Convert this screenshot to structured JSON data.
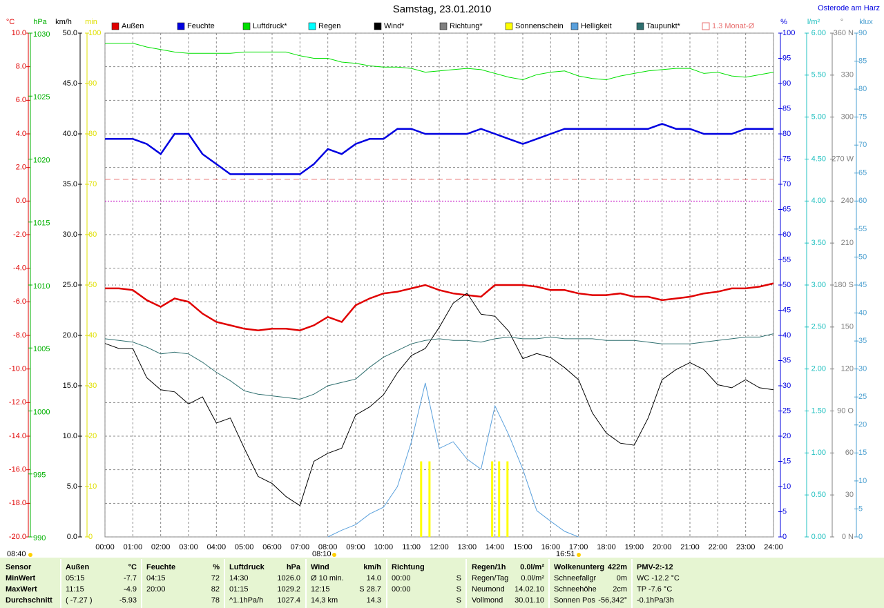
{
  "chart_data": {
    "type": "line",
    "title": "Samstag, 23.01.2010",
    "subtitle": "Osterode am Harz",
    "x": [
      0,
      0.5,
      1,
      1.5,
      2,
      2.5,
      3,
      3.5,
      4,
      4.5,
      5,
      5.5,
      6,
      6.5,
      7,
      7.5,
      8,
      8.5,
      9,
      9.5,
      10,
      10.5,
      11,
      11.5,
      12,
      12.5,
      13,
      13.5,
      14,
      14.5,
      15,
      15.5,
      16,
      16.5,
      17,
      17.5,
      18,
      18.5,
      19,
      19.5,
      20,
      20.5,
      21,
      21.5,
      22,
      22.5,
      23,
      23.5,
      24
    ],
    "xlim": [
      0,
      24
    ],
    "xticks": [
      {
        "value": 0,
        "label": "00:00"
      },
      {
        "value": 1,
        "label": "01:00"
      },
      {
        "value": 2,
        "label": "02:00"
      },
      {
        "value": 3,
        "label": "03:00"
      },
      {
        "value": 4,
        "label": "04:00"
      },
      {
        "value": 5,
        "label": "05:00"
      },
      {
        "value": 6,
        "label": "06:00"
      },
      {
        "value": 7,
        "label": "07:00"
      },
      {
        "value": 8,
        "label": "08:00"
      },
      {
        "value": 9,
        "label": "09:00"
      },
      {
        "value": 10,
        "label": "10:00"
      },
      {
        "value": 11,
        "label": "11:00"
      },
      {
        "value": 12,
        "label": "12:00"
      },
      {
        "value": 13,
        "label": "13:00"
      },
      {
        "value": 14,
        "label": "14:00"
      },
      {
        "value": 15,
        "label": "15:00"
      },
      {
        "value": 16,
        "label": "16:00"
      },
      {
        "value": 17,
        "label": "17:00"
      },
      {
        "value": 18,
        "label": "18:00"
      },
      {
        "value": 19,
        "label": "19:00"
      },
      {
        "value": 20,
        "label": "20:00"
      },
      {
        "value": 21,
        "label": "21:00"
      },
      {
        "value": 22,
        "label": "22:00"
      },
      {
        "value": 23,
        "label": "23:00"
      },
      {
        "value": 24,
        "label": "24:00"
      }
    ],
    "grid": true,
    "axes": [
      {
        "unit": "°C",
        "color": "#e00000",
        "lim": [
          -20,
          10
        ],
        "ticks": [
          {
            "value": -20,
            "label": "-20.0"
          },
          {
            "value": -18,
            "label": "-18.0"
          },
          {
            "value": -16,
            "label": "-16.0"
          },
          {
            "value": -14,
            "label": "-14.0"
          },
          {
            "value": -12,
            "label": "-12.0"
          },
          {
            "value": -10,
            "label": "-10.0"
          },
          {
            "value": -8,
            "label": "-8.0"
          },
          {
            "value": -6,
            "label": "-6.0"
          },
          {
            "value": -4,
            "label": "-4.0"
          },
          {
            "value": -2,
            "label": "-2.0"
          },
          {
            "value": 0,
            "label": "0.0"
          },
          {
            "value": 2,
            "label": "2.0"
          },
          {
            "value": 4,
            "label": "4.0"
          },
          {
            "value": 6,
            "label": "6.0"
          },
          {
            "value": 8,
            "label": "8.0"
          },
          {
            "value": 10,
            "label": "10.0"
          }
        ]
      },
      {
        "unit": "hPa",
        "color": "#00b000",
        "lim": [
          990,
          1030
        ],
        "ticks": [
          990,
          995,
          1000,
          1005,
          1010,
          1015,
          1020,
          1025,
          1030
        ]
      },
      {
        "unit": "km/h",
        "color": "#000000",
        "lim": [
          0,
          50
        ],
        "ticks": [
          {
            "value": 0,
            "label": "0.0"
          },
          {
            "value": 5,
            "label": "5.0"
          },
          {
            "value": 10,
            "label": "10.0"
          },
          {
            "value": 15,
            "label": "15.0"
          },
          {
            "value": 20,
            "label": "20.0"
          },
          {
            "value": 25,
            "label": "25.0"
          },
          {
            "value": 30,
            "label": "30.0"
          },
          {
            "value": 35,
            "label": "35.0"
          },
          {
            "value": 40,
            "label": "40.0"
          },
          {
            "value": 45,
            "label": "45.0"
          },
          {
            "value": 50,
            "label": "50.0"
          }
        ]
      },
      {
        "unit": "min",
        "color": "#e0e000",
        "lim": [
          0,
          100
        ],
        "ticks": [
          0,
          10,
          20,
          30,
          40,
          50,
          60,
          70,
          80,
          90,
          100
        ]
      },
      {
        "unit": "%",
        "color": "#0000e0",
        "lim": [
          0,
          100
        ],
        "ticks": [
          0,
          5,
          10,
          15,
          20,
          25,
          30,
          35,
          40,
          45,
          50,
          55,
          60,
          65,
          70,
          75,
          80,
          85,
          90,
          95,
          100
        ]
      },
      {
        "unit": "l/m²",
        "color": "#20c0c0",
        "lim": [
          0,
          6
        ],
        "ticks": [
          {
            "value": 0,
            "label": "0.00"
          },
          {
            "value": 0.5,
            "label": "0.50"
          },
          {
            "value": 1,
            "label": "1.00"
          },
          {
            "value": 1.5,
            "label": "1.50"
          },
          {
            "value": 2,
            "label": "2.00"
          },
          {
            "value": 2.5,
            "label": "2.50"
          },
          {
            "value": 3,
            "label": "3.00"
          },
          {
            "value": 3.5,
            "label": "3.50"
          },
          {
            "value": 4,
            "label": "4.00"
          },
          {
            "value": 4.5,
            "label": "4.50"
          },
          {
            "value": 5,
            "label": "5.00"
          },
          {
            "value": 5.5,
            "label": "5.50"
          },
          {
            "value": 6,
            "label": "6.00"
          }
        ]
      },
      {
        "unit": "°",
        "color": "#808080",
        "lim": [
          0,
          360
        ],
        "ticks": [
          {
            "value": 0,
            "label": "0 N"
          },
          30,
          60,
          {
            "value": 90,
            "label": "90 O"
          },
          120,
          150,
          {
            "value": 180,
            "label": "180 S"
          },
          210,
          240,
          {
            "value": 270,
            "label": "270 W"
          },
          300,
          330,
          {
            "value": 360,
            "label": "360 N"
          }
        ]
      },
      {
        "unit": "klux",
        "color": "#4a9fd0",
        "lim": [
          0,
          90
        ],
        "ticks": [
          0,
          5,
          10,
          15,
          20,
          25,
          30,
          35,
          40,
          45,
          50,
          55,
          60,
          65,
          70,
          75,
          80,
          85,
          90
        ]
      }
    ],
    "series": [
      {
        "name": "Außen",
        "color": "#e00000",
        "axis": 0,
        "values": [
          -5.2,
          -5.2,
          -5.3,
          -5.9,
          -6.3,
          -5.8,
          -6.0,
          -6.7,
          -7.2,
          -7.4,
          -7.6,
          -7.7,
          -7.6,
          -7.6,
          -7.7,
          -7.4,
          -6.9,
          -7.2,
          -6.2,
          -5.8,
          -5.5,
          -5.4,
          -5.2,
          -5.0,
          -5.3,
          -5.5,
          -5.6,
          -5.7,
          -5.0,
          -5.0,
          -5.0,
          -5.1,
          -5.3,
          -5.3,
          -5.5,
          -5.6,
          -5.6,
          -5.5,
          -5.7,
          -5.7,
          -5.9,
          -5.8,
          -5.7,
          -5.5,
          -5.4,
          -5.2,
          -5.2,
          -5.1,
          -4.9
        ]
      },
      {
        "name": "Feuchte",
        "color": "#0000e0",
        "axis": 4,
        "values": [
          79,
          79,
          79,
          78,
          76,
          80,
          80,
          76,
          74,
          72,
          72,
          72,
          72,
          72,
          72,
          74,
          77,
          76,
          78,
          79,
          79,
          81,
          81,
          80,
          80,
          80,
          80,
          81,
          80,
          79,
          78,
          79,
          80,
          81,
          81,
          81,
          81,
          81,
          81,
          81,
          82,
          81,
          81,
          80,
          80,
          80,
          81,
          81,
          81
        ]
      },
      {
        "name": "Luftdruck*",
        "color": "#00e000",
        "axis": 1,
        "values": [
          1029.2,
          1029.2,
          1029.2,
          1028.9,
          1028.7,
          1028.5,
          1028.4,
          1028.4,
          1028.4,
          1028.4,
          1028.5,
          1028.5,
          1028.5,
          1028.5,
          1028.2,
          1028.0,
          1028.0,
          1027.7,
          1027.6,
          1027.4,
          1027.3,
          1027.3,
          1027.2,
          1026.9,
          1027.0,
          1027.1,
          1027.2,
          1027.1,
          1026.8,
          1026.5,
          1026.3,
          1026.7,
          1026.9,
          1027.0,
          1026.6,
          1026.4,
          1026.3,
          1026.6,
          1026.8,
          1027.0,
          1027.1,
          1027.2,
          1027.2,
          1026.8,
          1026.9,
          1026.6,
          1026.5,
          1026.7,
          1026.9
        ]
      },
      {
        "name": "Wind*",
        "color": "#000000",
        "axis": 2,
        "values": [
          19.2,
          18.7,
          18.7,
          15.8,
          14.6,
          14.4,
          13.2,
          13.9,
          11.3,
          11.8,
          8.8,
          6.0,
          5.3,
          4.0,
          3.1,
          7.5,
          8.3,
          8.8,
          12.1,
          12.9,
          14.1,
          16.3,
          18.0,
          18.7,
          20.8,
          23.2,
          24.2,
          22.1,
          21.9,
          20.4,
          17.7,
          18.2,
          17.8,
          16.8,
          15.6,
          12.3,
          10.3,
          9.3,
          9.1,
          11.8,
          15.6,
          16.6,
          17.3,
          16.6,
          15.1,
          14.8,
          15.6,
          14.8,
          14.6
        ]
      },
      {
        "name": "Taupunkt*",
        "color": "#2f6f6f",
        "axis": 0,
        "values": [
          -8.2,
          -8.3,
          -8.4,
          -8.7,
          -9.1,
          -9.0,
          -9.1,
          -9.6,
          -10.2,
          -10.7,
          -11.3,
          -11.5,
          -11.6,
          -11.7,
          -11.8,
          -11.5,
          -11.0,
          -10.8,
          -10.6,
          -9.9,
          -9.3,
          -8.9,
          -8.5,
          -8.3,
          -8.2,
          -8.3,
          -8.3,
          -8.4,
          -8.2,
          -8.1,
          -8.2,
          -8.2,
          -8.1,
          -8.2,
          -8.2,
          -8.2,
          -8.3,
          -8.3,
          -8.3,
          -8.4,
          -8.5,
          -8.5,
          -8.5,
          -8.4,
          -8.3,
          -8.2,
          -8.1,
          -8.1,
          -7.9
        ]
      },
      {
        "name": "Helligkeit",
        "color": "#5aa0dc",
        "axis": 7,
        "values": [
          null,
          null,
          null,
          null,
          null,
          null,
          null,
          null,
          null,
          null,
          null,
          null,
          null,
          null,
          null,
          null,
          0,
          1.2,
          2.2,
          4.1,
          5.3,
          9.0,
          17.0,
          27.5,
          15.8,
          17.0,
          13.9,
          12.1,
          23.4,
          18.2,
          12.1,
          4.7,
          2.8,
          1.0,
          0,
          null,
          null,
          null,
          null,
          null,
          null,
          null,
          null,
          null,
          null,
          null,
          null,
          null,
          null
        ]
      },
      {
        "name": "Sonnenschein",
        "color": "#ffff00",
        "axis": 3,
        "kind": "bar",
        "x": [
          11.35,
          11.65,
          13.9,
          14.15,
          14.45
        ],
        "values": [
          15,
          15,
          15,
          15,
          15
        ]
      }
    ],
    "legend_only": [
      {
        "name": "Regen",
        "color": "#00ffff",
        "after": 2
      },
      {
        "name": "Richtung*",
        "color": "#808080",
        "after": 3
      }
    ],
    "monthly_avg": {
      "label": "1.3 Monat-Ø",
      "value": 1.3,
      "axis": 0,
      "color": "#e87070"
    },
    "sun_markers": [
      "08:40",
      "08:10",
      "16:51"
    ]
  },
  "table": {
    "rows": [
      [
        "Sensor",
        "Außen",
        "°C",
        "Feuchte",
        "%",
        "Luftdruck",
        "hPa",
        "Wind",
        "km/h",
        "Richtung",
        null,
        "Regen/1h",
        "0.0l/m²",
        "Wolkenunterg",
        "422m",
        "PMV-2:-12"
      ],
      [
        "MinWert",
        "05:15",
        "-7.7",
        "04:15",
        "72",
        "14:30",
        "1026.0",
        "Ø 10 min.",
        "14.0",
        "00:00",
        "S",
        "Regen/Tag",
        "0.0l/m²",
        "Schneefallgr",
        "0m",
        "WC -12.2 °C"
      ],
      [
        "MaxWert",
        "11:15",
        "-4.9",
        "20:00",
        "82",
        "01:15",
        "1029.2",
        "12:15",
        "S 28.7",
        "00:00",
        "S",
        "Neumond",
        "14.02.10",
        "Schneehöhe",
        "2cm",
        "TP -7.6 °C"
      ],
      [
        "Durchschnitt",
        "( -7.27 )",
        "-5.93",
        null,
        "78",
        "^1.1hPa/h",
        "1027.4",
        "14,3 km",
        "14.3",
        null,
        "S",
        "Vollmond",
        "30.01.10",
        "Sonnen Pos",
        "-56,342°",
        "-0.1hPa/3h"
      ]
    ]
  }
}
